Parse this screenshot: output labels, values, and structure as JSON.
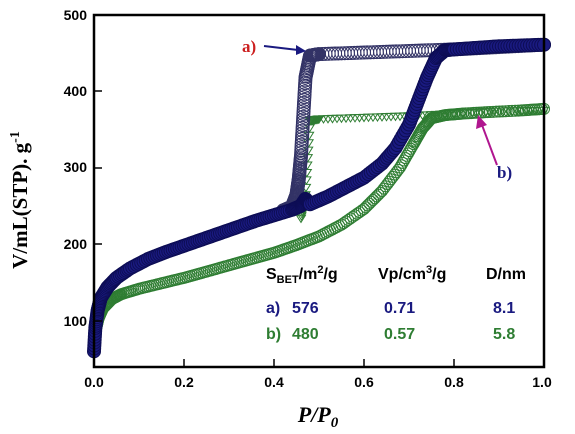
{
  "chart_data": {
    "type": "scatter",
    "xlabel": "P/P",
    "xlabel_sub": "0",
    "ylabel": "V/mL(STP). g",
    "ylabel_sup": "-1",
    "xlim": [
      0,
      1
    ],
    "ylim": [
      50,
      500
    ],
    "x_ticks": [
      "0.0",
      "0.2",
      "0.4",
      "0.6",
      "0.8",
      "1.0"
    ],
    "y_ticks": [
      "100",
      "200",
      "300",
      "400",
      "500"
    ],
    "grid": false,
    "colors": {
      "a": "#1a1a80",
      "b": "#2e7d32",
      "label_a": "#cc1f1f",
      "arrow_b": "#b0168f"
    },
    "series": [
      {
        "name": "a)",
        "adsorption": {
          "x": [
            0.0,
            0.003,
            0.008,
            0.015,
            0.03,
            0.05,
            0.08,
            0.12,
            0.16,
            0.2,
            0.24,
            0.28,
            0.32,
            0.36,
            0.4,
            0.44,
            0.46,
            0.47,
            0.48,
            0.52,
            0.56,
            0.6,
            0.64,
            0.67,
            0.7,
            0.72,
            0.74,
            0.76,
            0.78,
            0.8,
            0.85,
            0.9,
            0.95,
            1.0
          ],
          "y": [
            70,
            100,
            122,
            138,
            152,
            164,
            176,
            188,
            197,
            205,
            213,
            221,
            229,
            237,
            244,
            251,
            256,
            265,
            258,
            268,
            280,
            292,
            310,
            330,
            360,
            390,
            420,
            445,
            455,
            456,
            458,
            460,
            461,
            462
          ]
        },
        "desorption": {
          "x": [
            1.0,
            0.9,
            0.8,
            0.7,
            0.6,
            0.5,
            0.48,
            0.47,
            0.465,
            0.46,
            0.455,
            0.45,
            0.44,
            0.42
          ],
          "y": [
            462,
            459,
            456,
            454,
            452,
            450,
            448,
            420,
            370,
            320,
            290,
            270,
            255,
            250
          ]
        }
      },
      {
        "name": "b)",
        "adsorption": {
          "x": [
            0.0,
            0.005,
            0.01,
            0.02,
            0.04,
            0.06,
            0.1,
            0.15,
            0.2,
            0.25,
            0.3,
            0.35,
            0.4,
            0.45,
            0.5,
            0.55,
            0.6,
            0.64,
            0.68,
            0.71,
            0.73,
            0.75,
            0.78,
            0.82,
            0.88,
            0.95,
            1.0
          ],
          "y": [
            80,
            100,
            112,
            125,
            137,
            143,
            150,
            157,
            164,
            172,
            180,
            188,
            196,
            206,
            217,
            232,
            252,
            275,
            305,
            335,
            355,
            368,
            372,
            374,
            376,
            378,
            380
          ]
        },
        "desorption": {
          "x": [
            1.0,
            0.9,
            0.8,
            0.7,
            0.6,
            0.5,
            0.48,
            0.47,
            0.46
          ],
          "y": [
            378,
            377,
            374,
            371,
            369,
            367,
            365,
            270,
            240
          ]
        }
      }
    ],
    "annotations": [
      {
        "label": "a)",
        "x": 0.34,
        "y": 455
      },
      {
        "label": "b)",
        "x": 0.93,
        "y": 345
      }
    ],
    "table": {
      "headers": [
        "S",
        "BET",
        "/m",
        "2",
        "/g",
        "Vp/cm",
        "3",
        "/g",
        "D/nm"
      ],
      "rows": [
        {
          "label": "a)",
          "s_bet": "576",
          "vp": "0.71",
          "d": "8.1"
        },
        {
          "label": "b)",
          "s_bet": "480",
          "vp": "0.57",
          "d": "5.8"
        }
      ]
    }
  }
}
